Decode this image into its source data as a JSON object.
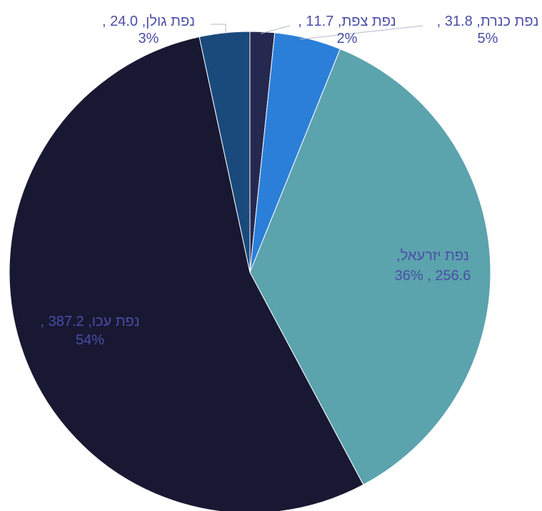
{
  "chart_data": {
    "type": "pie",
    "title": "",
    "start_angle_deg": 0,
    "direction": "clockwise",
    "slices": [
      {
        "name": "נפת צפת",
        "value": 11.7,
        "percent_label": "2%",
        "line1": "נפת צפת, 11.7 ,",
        "line2": "2%",
        "color": "#25284f"
      },
      {
        "name": "נפת כנרת",
        "value": 31.8,
        "percent_label": "5%",
        "line1": "נפת כנרת, 31.8 ,",
        "line2": "5%",
        "color": "#2b7fd9"
      },
      {
        "name": "נפת יזרעאל",
        "value": 256.6,
        "percent_label": "36%",
        "line1": "נפת יזרעאל,",
        "line2": "256.6 , 36%",
        "color": "#5ba3ad"
      },
      {
        "name": "נפת עכו",
        "value": 387.2,
        "percent_label": "54%",
        "line1": "נפת עכו, 387.2 ,",
        "line2": "54%",
        "color": "#181833"
      },
      {
        "name": "נפת גולן",
        "value": 24.0,
        "percent_label": "3%",
        "line1": "נפת גולן, 24.0 ,",
        "line2": "3%",
        "color": "#1a4a7c"
      }
    ]
  }
}
